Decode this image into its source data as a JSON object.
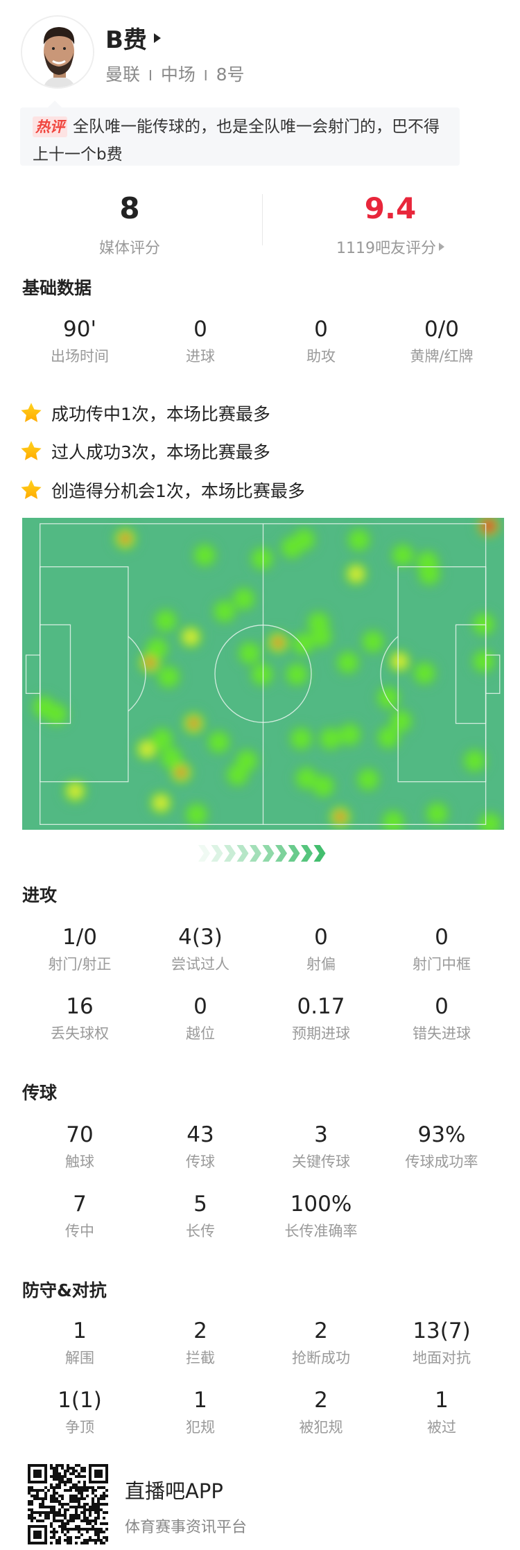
{
  "player": {
    "name": "B费",
    "team": "曼联",
    "position": "中场",
    "number": "8号",
    "separator": "I"
  },
  "comment": {
    "badge": "热评",
    "text": "全队唯一能传球的，也是全队唯一会射门的，巴不得上十一个b费"
  },
  "ratings": {
    "media": {
      "value": "8",
      "label": "媒体评分"
    },
    "fans": {
      "value": "9.4",
      "label": "1119吧友评分",
      "color": "#e8263b"
    }
  },
  "basic": {
    "title": "基础数据",
    "stats": [
      {
        "value": "90'",
        "label": "出场时间"
      },
      {
        "value": "0",
        "label": "进球"
      },
      {
        "value": "0",
        "label": "助攻"
      },
      {
        "value": "0/0",
        "label": "黄牌/红牌"
      }
    ]
  },
  "highlights": [
    {
      "icon": "star-icon",
      "text": "成功传中1次，本场比赛最多"
    },
    {
      "icon": "star-icon",
      "text": "过人成功3次，本场比赛最多"
    },
    {
      "icon": "star-icon",
      "text": "创造得分机会1次，本场比赛最多"
    }
  ],
  "heatmap": {
    "pitch_color": "#52b983",
    "attack_direction": "right",
    "points": [
      {
        "x": 21.4,
        "y": 6.7,
        "i": 3
      },
      {
        "x": 96.8,
        "y": 2.6,
        "i": 4
      },
      {
        "x": 37.9,
        "y": 12,
        "i": 1
      },
      {
        "x": 49.8,
        "y": 13.1,
        "i": 1
      },
      {
        "x": 56,
        "y": 9.5,
        "i": 1
      },
      {
        "x": 58.5,
        "y": 7,
        "i": 1
      },
      {
        "x": 69.9,
        "y": 7.1,
        "i": 1
      },
      {
        "x": 69.3,
        "y": 18,
        "i": 2
      },
      {
        "x": 79,
        "y": 12,
        "i": 1
      },
      {
        "x": 84.1,
        "y": 14.2,
        "i": 1
      },
      {
        "x": 84.5,
        "y": 18,
        "i": 1
      },
      {
        "x": 42,
        "y": 30,
        "i": 1
      },
      {
        "x": 46,
        "y": 26,
        "i": 1
      },
      {
        "x": 29.8,
        "y": 33,
        "i": 1
      },
      {
        "x": 35,
        "y": 38.2,
        "i": 2
      },
      {
        "x": 26.5,
        "y": 46.4,
        "i": 3
      },
      {
        "x": 30.4,
        "y": 51,
        "i": 1
      },
      {
        "x": 28,
        "y": 42,
        "i": 1
      },
      {
        "x": 47.2,
        "y": 43.4,
        "i": 1
      },
      {
        "x": 53.1,
        "y": 40,
        "i": 3
      },
      {
        "x": 61.5,
        "y": 33.7,
        "i": 1
      },
      {
        "x": 62,
        "y": 38,
        "i": 1
      },
      {
        "x": 58.3,
        "y": 40.4,
        "i": 1
      },
      {
        "x": 49.8,
        "y": 50.2,
        "i": 1
      },
      {
        "x": 57,
        "y": 50.2,
        "i": 1
      },
      {
        "x": 67.6,
        "y": 46.4,
        "i": 1
      },
      {
        "x": 72.8,
        "y": 39.7,
        "i": 1
      },
      {
        "x": 78.3,
        "y": 46,
        "i": 2
      },
      {
        "x": 83.5,
        "y": 49.8,
        "i": 1
      },
      {
        "x": 95.8,
        "y": 34.1,
        "i": 1
      },
      {
        "x": 95.8,
        "y": 46,
        "i": 1
      },
      {
        "x": 76,
        "y": 57.7,
        "i": 1
      },
      {
        "x": 78.6,
        "y": 65.2,
        "i": 1
      },
      {
        "x": 76,
        "y": 70.4,
        "i": 1
      },
      {
        "x": 4.5,
        "y": 60.7,
        "i": 1
      },
      {
        "x": 7.1,
        "y": 62.9,
        "i": 1
      },
      {
        "x": 35.6,
        "y": 65.9,
        "i": 3
      },
      {
        "x": 40.8,
        "y": 71.9,
        "i": 1
      },
      {
        "x": 25.9,
        "y": 74.2,
        "i": 2
      },
      {
        "x": 29,
        "y": 71,
        "i": 1
      },
      {
        "x": 33,
        "y": 81.6,
        "i": 3
      },
      {
        "x": 31,
        "y": 77,
        "i": 1
      },
      {
        "x": 46.6,
        "y": 77.9,
        "i": 1
      },
      {
        "x": 44.7,
        "y": 82.4,
        "i": 1
      },
      {
        "x": 57.9,
        "y": 70.8,
        "i": 1
      },
      {
        "x": 64,
        "y": 70.8,
        "i": 1
      },
      {
        "x": 68,
        "y": 69.5,
        "i": 1
      },
      {
        "x": 11,
        "y": 87.6,
        "i": 2
      },
      {
        "x": 28.8,
        "y": 91.4,
        "i": 2
      },
      {
        "x": 36.2,
        "y": 95.1,
        "i": 1
      },
      {
        "x": 59,
        "y": 83.5,
        "i": 1
      },
      {
        "x": 62.5,
        "y": 86,
        "i": 1
      },
      {
        "x": 71.8,
        "y": 83.9,
        "i": 1
      },
      {
        "x": 66,
        "y": 95.9,
        "i": 3
      },
      {
        "x": 77,
        "y": 97.4,
        "i": 1
      },
      {
        "x": 86.1,
        "y": 94.8,
        "i": 1
      },
      {
        "x": 93.9,
        "y": 77.9,
        "i": 1
      },
      {
        "x": 97.1,
        "y": 98.1,
        "i": 1
      }
    ]
  },
  "attack": {
    "title": "进攻",
    "stats": [
      {
        "value": "1/0",
        "label": "射门/射正"
      },
      {
        "value": "4(3)",
        "label": "尝试过人"
      },
      {
        "value": "0",
        "label": "射偏"
      },
      {
        "value": "0",
        "label": "射门中框"
      },
      {
        "value": "16",
        "label": "丢失球权"
      },
      {
        "value": "0",
        "label": "越位"
      },
      {
        "value": "0.17",
        "label": "预期进球"
      },
      {
        "value": "0",
        "label": "错失进球"
      }
    ]
  },
  "passing": {
    "title": "传球",
    "stats": [
      {
        "value": "70",
        "label": "触球"
      },
      {
        "value": "43",
        "label": "传球"
      },
      {
        "value": "3",
        "label": "关键传球"
      },
      {
        "value": "93%",
        "label": "传球成功率"
      },
      {
        "value": "7",
        "label": "传中"
      },
      {
        "value": "5",
        "label": "长传"
      },
      {
        "value": "100%",
        "label": "长传准确率"
      }
    ]
  },
  "defense": {
    "title": "防守&对抗",
    "stats": [
      {
        "value": "1",
        "label": "解围"
      },
      {
        "value": "2",
        "label": "拦截"
      },
      {
        "value": "2",
        "label": "抢断成功"
      },
      {
        "value": "13(7)",
        "label": "地面对抗"
      },
      {
        "value": "1(1)",
        "label": "争顶"
      },
      {
        "value": "1",
        "label": "犯规"
      },
      {
        "value": "2",
        "label": "被犯规"
      },
      {
        "value": "1",
        "label": "被过"
      }
    ]
  },
  "footer": {
    "app_name": "直播吧APP",
    "slogan": "体育赛事资讯平台"
  }
}
